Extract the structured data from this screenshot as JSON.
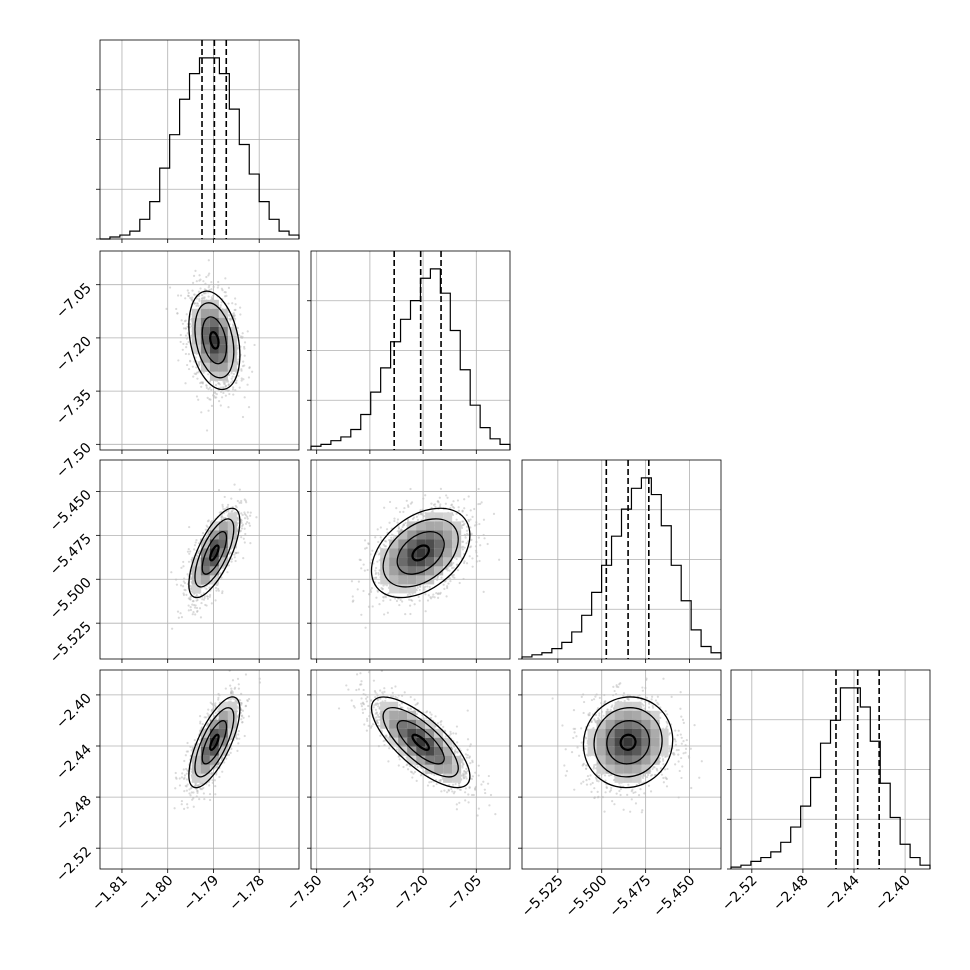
{
  "chart_data": {
    "type": "corner",
    "params": [
      {
        "ticks": [
          "−1.81",
          "−1.80",
          "−1.79",
          "−1.78"
        ],
        "tick_values": [
          -1.81,
          -1.8,
          -1.79,
          -1.78
        ],
        "range": [
          -1.8148,
          -1.7713
        ]
      },
      {
        "ticks": [
          "−7.50",
          "−7.35",
          "−7.20",
          "−7.05"
        ],
        "tick_values": [
          -7.5,
          -7.35,
          -7.2,
          -7.05
        ],
        "range": [
          -7.516,
          -6.955
        ]
      },
      {
        "ticks": [
          "−5.525",
          "−5.500",
          "−5.475",
          "−5.450"
        ],
        "tick_values": [
          -5.525,
          -5.5,
          -5.475,
          -5.45
        ],
        "range": [
          -5.5454,
          -5.4321
        ]
      },
      {
        "ticks": [
          "−2.52",
          "−2.48",
          "−2.44",
          "−2.40"
        ],
        "tick_values": [
          -2.52,
          -2.48,
          -2.44,
          -2.4
        ],
        "range": [
          -2.5363,
          -2.3805
        ]
      }
    ],
    "quantiles": [
      [
        -1.7925,
        -1.7898,
        -1.7872
      ],
      [
        -7.2815,
        -7.2068,
        -7.1494
      ],
      [
        -5.4974,
        -5.485,
        -5.4732
      ],
      [
        -2.4541,
        -2.4371,
        -2.4203
      ]
    ],
    "histograms": [
      [
        0,
        1,
        2,
        4,
        10,
        19,
        36,
        53,
        71,
        84,
        92,
        92,
        84,
        66,
        48,
        33,
        19,
        10,
        4,
        2
      ],
      [
        2,
        3,
        5,
        7,
        11,
        19,
        31,
        44,
        58,
        70,
        80,
        92,
        97,
        84,
        64,
        43,
        24,
        12,
        6,
        3
      ],
      [
        1,
        2,
        3,
        5,
        8,
        13,
        21,
        32,
        45,
        59,
        72,
        82,
        87,
        79,
        64,
        45,
        28,
        14,
        6,
        3
      ],
      [
        1,
        2,
        4,
        6,
        9,
        14,
        22,
        33,
        48,
        66,
        78,
        95,
        95,
        85,
        67,
        45,
        27,
        13,
        6,
        2
      ]
    ],
    "correlations": {
      "1-0": -0.3,
      "2-0": 0.7,
      "2-1": 0.4,
      "3-0": 0.72,
      "3-1": -0.75,
      "3-2": 0.05
    },
    "scatter_color": "#bbbbbb",
    "density_color": "#000000",
    "line_color": "#000000",
    "grid": true
  }
}
